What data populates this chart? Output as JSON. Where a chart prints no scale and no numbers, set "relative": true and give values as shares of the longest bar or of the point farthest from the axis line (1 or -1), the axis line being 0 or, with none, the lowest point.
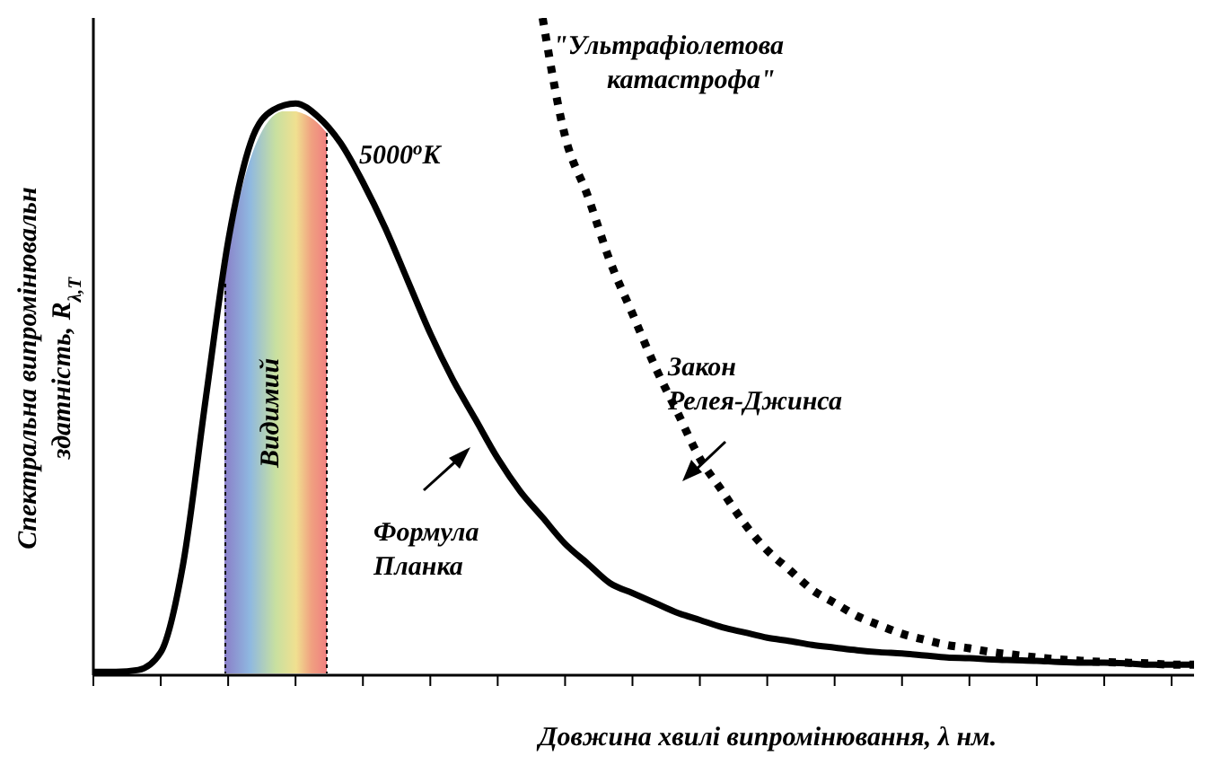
{
  "chart_data": {
    "type": "line",
    "relative": true,
    "xlabel": "Довжина хвилі випромінювання, λ нм.",
    "ylabel": "Спектральна випромінювальн здатність, R$_{λ,T}$",
    "categories": [
      null,
      null,
      null,
      null,
      null,
      null,
      null,
      null,
      null,
      null,
      null,
      null,
      null,
      null,
      null,
      null,
      null,
      null,
      null,
      null,
      null,
      null,
      null,
      null,
      null,
      null,
      null,
      null,
      null,
      null,
      null,
      null,
      null,
      null,
      null,
      null,
      null,
      null,
      null,
      null,
      null,
      null,
      null,
      null,
      null,
      null,
      null,
      null,
      null,
      null
    ],
    "series": [
      {
        "name": "Формула Планка",
        "color": "#000000",
        "line_style": "solid",
        "values": [
          0.005,
          0.005,
          0.008,
          0.035,
          0.17,
          0.42,
          0.66,
          0.81,
          0.86,
          0.87,
          0.85,
          0.81,
          0.75,
          0.68,
          0.6,
          0.52,
          0.45,
          0.39,
          0.33,
          0.28,
          0.24,
          0.2,
          0.17,
          0.14,
          0.125,
          0.11,
          0.095,
          0.084,
          0.073,
          0.065,
          0.057,
          0.052,
          0.046,
          0.042,
          0.038,
          0.035,
          0.033,
          0.03,
          0.027,
          0.026,
          0.024,
          0.023,
          0.022,
          0.02,
          0.019,
          0.019,
          0.018,
          0.016,
          0.016,
          0.016
        ]
      },
      {
        "name": "Закон Релея-Джинса",
        "color": "#000000",
        "line_style": "dotted",
        "values": [
          null,
          null,
          null,
          null,
          null,
          null,
          null,
          null,
          null,
          null,
          null,
          null,
          null,
          null,
          null,
          null,
          null,
          null,
          null,
          null,
          1,
          0.82,
          0.73,
          0.63,
          0.55,
          0.47,
          0.4,
          0.33,
          0.28,
          0.23,
          0.19,
          0.16,
          0.13,
          0.11,
          0.09,
          0.076,
          0.063,
          0.054,
          0.046,
          0.041,
          0.035,
          0.031,
          0.027,
          0.024,
          0.022,
          0.02,
          0.019,
          0.018,
          0.016,
          0.016
        ]
      }
    ],
    "annotations": [
      "5000$^{o}$K",
      "\"Ультрафіолетова катастрофа\"",
      "Видимий"
    ],
    "marker": "none"
  }
}
